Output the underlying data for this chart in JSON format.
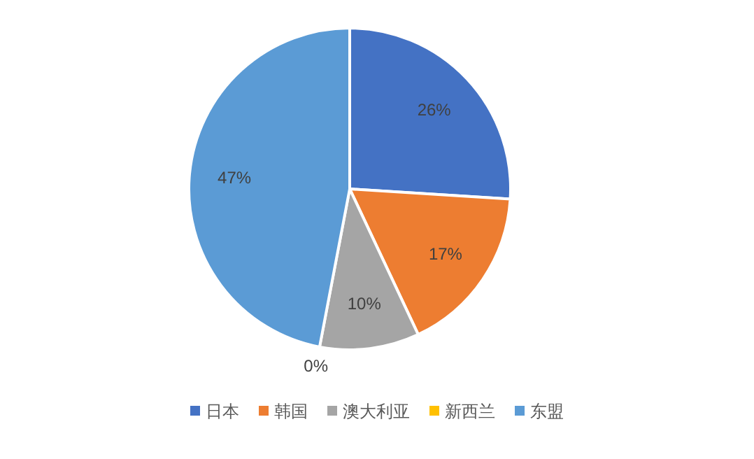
{
  "chart_data": {
    "type": "pie",
    "categories": [
      "日本",
      "韩国",
      "澳大利亚",
      "新西兰",
      "东盟"
    ],
    "values": [
      26,
      17,
      10,
      0,
      47
    ],
    "colors": [
      "#4472c4",
      "#ed7d31",
      "#a5a5a5",
      "#ffc000",
      "#5b9bd5"
    ],
    "value_labels": [
      "26%",
      "17%",
      "10%",
      "0%",
      "47%"
    ],
    "legend": "bottom"
  }
}
